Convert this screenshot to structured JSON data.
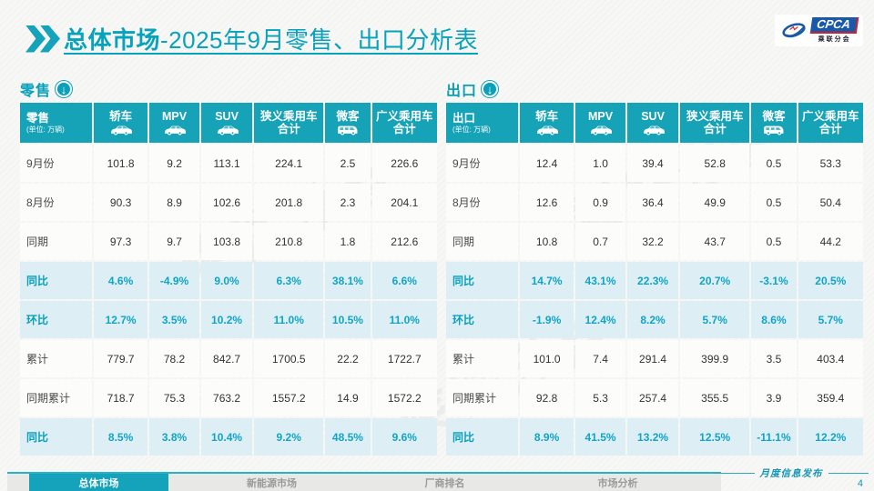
{
  "title": {
    "bold": "总体市场",
    "rest": "-2025年9月零售、出口分析表"
  },
  "logo": {
    "name": "CPCA",
    "subtitle": "乘联分会"
  },
  "watermark": {
    "text": "乘联分会"
  },
  "columns_note": "shared column heads for both tables",
  "tables": [
    {
      "section_label": "零售",
      "corner_label": "零售",
      "unit": "(单位: 万辆)",
      "columns": [
        {
          "label": "轿车",
          "icon": "car"
        },
        {
          "label": "MPV",
          "icon": "car"
        },
        {
          "label": "SUV",
          "icon": "car"
        },
        {
          "label": "狭义乘用车\n合计",
          "icon": ""
        },
        {
          "label": "微客",
          "icon": "van"
        },
        {
          "label": "广义乘用车\n合计",
          "icon": ""
        }
      ],
      "rows": [
        {
          "label": "9月份",
          "type": "data",
          "values": [
            "101.8",
            "9.2",
            "113.1",
            "224.1",
            "2.5",
            "226.6"
          ]
        },
        {
          "label": "8月份",
          "type": "data",
          "values": [
            "90.3",
            "8.9",
            "102.6",
            "201.8",
            "2.3",
            "204.1"
          ]
        },
        {
          "label": "同期",
          "type": "data",
          "values": [
            "97.3",
            "9.7",
            "103.8",
            "210.8",
            "1.8",
            "212.6"
          ]
        },
        {
          "label": "同比",
          "type": "pct",
          "values": [
            "4.6%",
            "-4.9%",
            "9.0%",
            "6.3%",
            "38.1%",
            "6.6%"
          ]
        },
        {
          "label": "环比",
          "type": "pct",
          "values": [
            "12.7%",
            "3.5%",
            "10.2%",
            "11.0%",
            "10.5%",
            "11.0%"
          ]
        },
        {
          "label": "累计",
          "type": "data",
          "values": [
            "779.7",
            "78.2",
            "842.7",
            "1700.5",
            "22.2",
            "1722.7"
          ]
        },
        {
          "label": "同期累计",
          "type": "data",
          "values": [
            "718.7",
            "75.3",
            "763.2",
            "1557.2",
            "14.9",
            "1572.2"
          ]
        },
        {
          "label": "同比",
          "type": "pct",
          "values": [
            "8.5%",
            "3.8%",
            "10.4%",
            "9.2%",
            "48.5%",
            "9.6%"
          ]
        }
      ]
    },
    {
      "section_label": "出口",
      "corner_label": "出口",
      "unit": "(单位: 万辆)",
      "columns": [
        {
          "label": "轿车",
          "icon": "car"
        },
        {
          "label": "MPV",
          "icon": "car"
        },
        {
          "label": "SUV",
          "icon": "car"
        },
        {
          "label": "狭义乘用车\n合计",
          "icon": ""
        },
        {
          "label": "微客",
          "icon": "van"
        },
        {
          "label": "广义乘用车\n合计",
          "icon": ""
        }
      ],
      "rows": [
        {
          "label": "9月份",
          "type": "data",
          "values": [
            "12.4",
            "1.0",
            "39.4",
            "52.8",
            "0.5",
            "53.3"
          ]
        },
        {
          "label": "8月份",
          "type": "data",
          "values": [
            "12.6",
            "0.9",
            "36.4",
            "49.9",
            "0.5",
            "50.4"
          ]
        },
        {
          "label": "同期",
          "type": "data",
          "values": [
            "10.8",
            "0.7",
            "32.2",
            "43.7",
            "0.5",
            "44.2"
          ]
        },
        {
          "label": "同比",
          "type": "pct",
          "values": [
            "14.7%",
            "43.1%",
            "22.3%",
            "20.7%",
            "-3.1%",
            "20.5%"
          ]
        },
        {
          "label": "环比",
          "type": "pct",
          "values": [
            "-1.9%",
            "12.4%",
            "8.2%",
            "5.7%",
            "8.6%",
            "5.7%"
          ]
        },
        {
          "label": "累计",
          "type": "data",
          "values": [
            "101.0",
            "7.4",
            "291.4",
            "399.9",
            "3.5",
            "403.4"
          ]
        },
        {
          "label": "同期累计",
          "type": "data",
          "values": [
            "92.8",
            "5.3",
            "257.4",
            "355.5",
            "3.9",
            "359.4"
          ]
        },
        {
          "label": "同比",
          "type": "pct",
          "values": [
            "8.9%",
            "41.5%",
            "13.2%",
            "12.5%",
            "-11.1%",
            "12.2%"
          ]
        }
      ]
    }
  ],
  "footer": {
    "tabs": [
      {
        "label": "总体市场",
        "active": true
      },
      {
        "label": "新能源市场",
        "active": false
      },
      {
        "label": "厂商排名",
        "active": false
      },
      {
        "label": "市场分析",
        "active": false
      }
    ],
    "publication": "月度信息发布",
    "page_number": "4"
  },
  "colors": {
    "accent_teal": "#14a3ba",
    "header_cell": "#16a3b7",
    "pct_row_bg": "#ddeef5",
    "pct_text": "#11a5c5",
    "logo_blue": "#1a58a8",
    "logo_red": "#cf2030",
    "strip_gray": "#e8e8e7"
  }
}
